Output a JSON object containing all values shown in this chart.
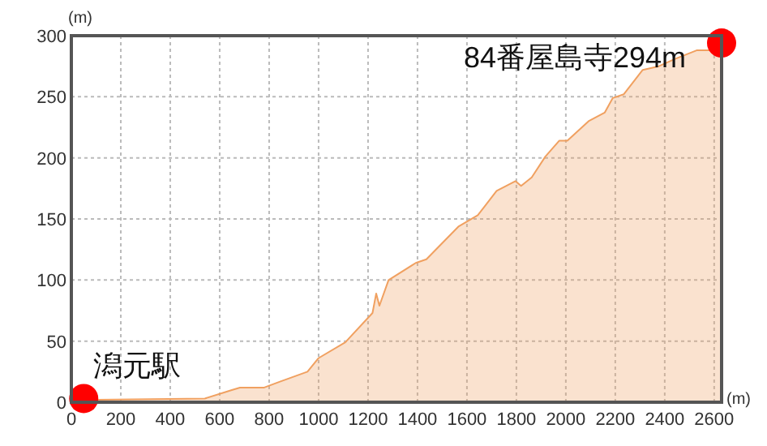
{
  "chart_data": {
    "type": "area",
    "xlabel": "(m)",
    "ylabel": "(m)",
    "xlim": [
      0,
      2630
    ],
    "ylim": [
      0,
      300
    ],
    "xticks": [
      0,
      200,
      400,
      600,
      800,
      1000,
      1200,
      1400,
      1600,
      1800,
      2000,
      2200,
      2400,
      2600
    ],
    "yticks": [
      0,
      50,
      100,
      150,
      200,
      250,
      300
    ],
    "grid": true,
    "series": [
      {
        "color": "#f0a060",
        "x": [
          50,
          103,
          540,
          649,
          682,
          780,
          846,
          955,
          999,
          1108,
          1218,
          1233,
          1246,
          1283,
          1393,
          1436,
          1567,
          1644,
          1720,
          1796,
          1819,
          1862,
          1917,
          1973,
          2006,
          2092,
          2157,
          2190,
          2234,
          2311,
          2376,
          2442,
          2529,
          2595,
          2617,
          2630
        ],
        "values": [
          3,
          2,
          3,
          10,
          12,
          12,
          17,
          25,
          36,
          49,
          73,
          89,
          79,
          100,
          114,
          117,
          144,
          153,
          173,
          181,
          177,
          184,
          201,
          214,
          214,
          230,
          237,
          249,
          252,
          272,
          275,
          281,
          288,
          288,
          291,
          294
        ]
      },
      {
        "type": "scatter",
        "marker": "circle",
        "color": "#ff0000",
        "x": [
          50,
          2630
        ],
        "values": [
          3,
          294
        ]
      }
    ],
    "annotations": [
      {
        "text": "潟元駅",
        "x": 50,
        "y": 3
      },
      {
        "text": "84番屋島寺294m",
        "x": 2630,
        "y": 294
      }
    ]
  }
}
